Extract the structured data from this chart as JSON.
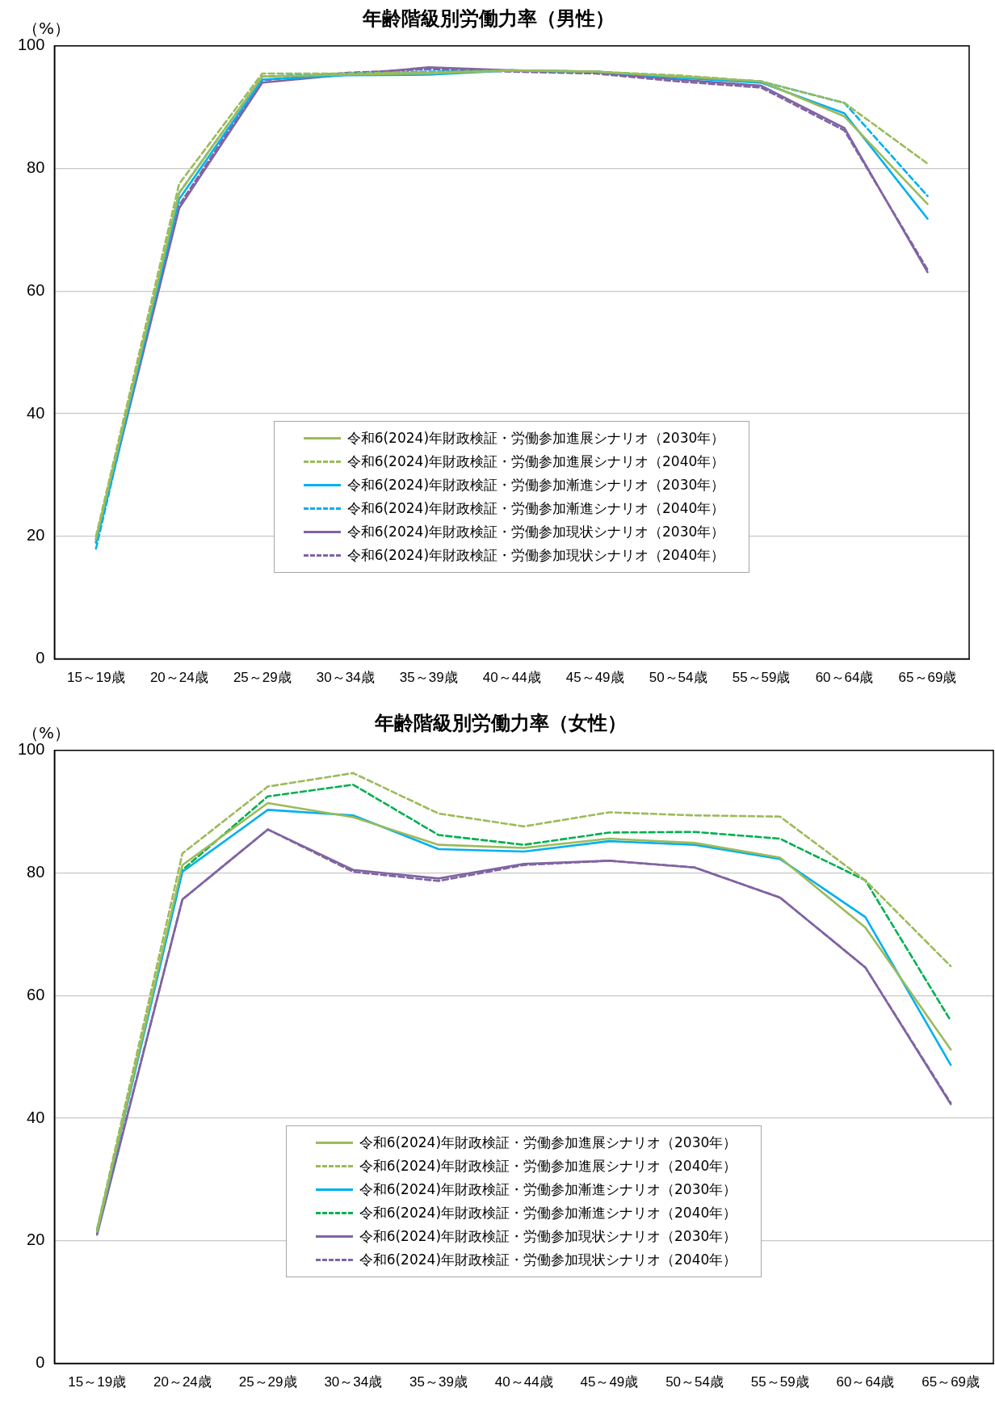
{
  "chart_data": [
    {
      "type": "line",
      "title": "年齢階級別労働力率（男性）",
      "ylabel": "（%）",
      "categories": [
        "15～19歳",
        "20～24歳",
        "25～29歳",
        "30～34歳",
        "35～39歳",
        "40～44歳",
        "45～49歳",
        "50～54歳",
        "55～59歳",
        "60～64歳",
        "65～69歳"
      ],
      "ylim": [
        0,
        100
      ],
      "yticks": [
        0,
        20,
        40,
        60,
        80,
        100
      ],
      "grid": "y",
      "legend": "bottom",
      "marker": "none",
      "series": [
        {
          "name": "令和6(2024)年財政検証・労働参加進展シナリオ（2030年）",
          "color": "#9bbb59",
          "line_style": "solid",
          "values": [
            19.5,
            76,
            95,
            95.3,
            95.5,
            96,
            95.8,
            95,
            94.2,
            88.5,
            74.2
          ]
        },
        {
          "name": "令和6(2024)年財政検証・労働参加進展シナリオ（2040年）",
          "color": "#9bbb59",
          "line_style": "dashed",
          "values": [
            20,
            77.5,
            95.5,
            95.5,
            95.7,
            96,
            95.8,
            95.2,
            94.2,
            90.7,
            80.8
          ]
        },
        {
          "name": "令和6(2024)年財政検証・労働参加漸進シナリオ（2030年）",
          "color": "#00b0f0",
          "line_style": "solid",
          "values": [
            19,
            75,
            94.5,
            95.2,
            95.3,
            96,
            95.8,
            94.8,
            94,
            89,
            71.8
          ]
        },
        {
          "name": "令和6(2024)年財政検証・労働参加漸進シナリオ（2040年）",
          "color": "#00b0f0",
          "line_style": "dashed",
          "values": [
            18,
            76,
            95,
            95.5,
            95.8,
            96,
            95.8,
            95,
            94.2,
            90.7,
            75.5
          ]
        },
        {
          "name": "令和6(2024)年財政検証・労働参加現状シナリオ（2030年）",
          "color": "#8064a2",
          "line_style": "solid",
          "values": [
            19,
            73.5,
            94,
            95.3,
            96.5,
            96,
            95.7,
            94.5,
            93.5,
            86.6,
            63.1
          ]
        },
        {
          "name": "令和6(2024)年財政検証・労働参加現状シナリオ（2040年）",
          "color": "#8064a2",
          "line_style": "dashed",
          "values": [
            19.5,
            74,
            94.4,
            95.6,
            96.2,
            95.8,
            95.5,
            94.2,
            93.2,
            86.2,
            63.5
          ]
        }
      ]
    },
    {
      "type": "line",
      "title": "年齢階級別労働力率（女性）",
      "ylabel": "（%）",
      "categories": [
        "15～19歳",
        "20～24歳",
        "25～29歳",
        "30～34歳",
        "35～39歳",
        "40～44歳",
        "45～49歳",
        "50～54歳",
        "55～59歳",
        "60～64歳",
        "65～69歳"
      ],
      "ylim": [
        0,
        100
      ],
      "yticks": [
        0,
        20,
        40,
        60,
        80,
        100
      ],
      "grid": "y",
      "legend": "bottom",
      "marker": "none",
      "series": [
        {
          "name": "令和6(2024)年財政検証・労働参加進展シナリオ（2030年）",
          "color": "#9bbb59",
          "line_style": "solid",
          "values": [
            21.5,
            81.3,
            91.4,
            89.1,
            84.6,
            84.1,
            85.6,
            84.9,
            82.5,
            71.1,
            51.2
          ]
        },
        {
          "name": "令和6(2024)年財政検証・労働参加進展シナリオ（2040年）",
          "color": "#9bbb59",
          "line_style": "dashed",
          "values": [
            22,
            83.2,
            94.1,
            96.3,
            89.7,
            87.6,
            89.9,
            89.4,
            89.2,
            78.8,
            64.8
          ]
        },
        {
          "name": "令和6(2024)年財政検証・労働参加漸進シナリオ（2030年）",
          "color": "#00b0f0",
          "line_style": "solid",
          "values": [
            21.5,
            80.2,
            90.3,
            89.4,
            83.9,
            83.5,
            85.2,
            84.6,
            82.3,
            72.8,
            48.7
          ]
        },
        {
          "name": "令和6(2024)年財政検証・労働参加漸進シナリオ（2040年）",
          "color": "#00b050",
          "line_style": "dashed",
          "values": [
            21.8,
            80.5,
            92.5,
            94.4,
            86.2,
            84.6,
            86.6,
            86.7,
            85.6,
            78.8,
            55.9
          ]
        },
        {
          "name": "令和6(2024)年財政検証・労働参加現状シナリオ（2030年）",
          "color": "#8064a2",
          "line_style": "solid",
          "values": [
            21,
            75.7,
            87.1,
            80.5,
            79.1,
            81.5,
            82,
            80.9,
            76,
            64.6,
            42.3
          ]
        },
        {
          "name": "令和6(2024)年財政検証・労働参加現状シナリオ（2040年）",
          "color": "#8064a2",
          "line_style": "dashed",
          "values": [
            21.3,
            75.7,
            87.1,
            80.2,
            78.7,
            81.3,
            82,
            80.9,
            76,
            64.6,
            42.5
          ]
        }
      ]
    }
  ]
}
